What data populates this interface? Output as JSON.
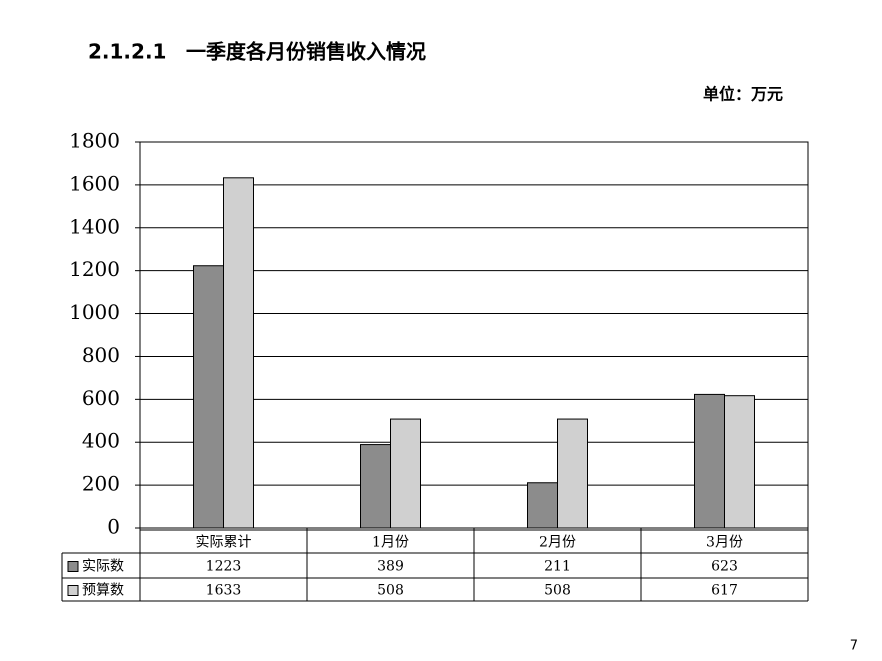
{
  "section_number": "2.1.2.1",
  "title": "一季度各月份销售收入情况",
  "unit": "单位：万元",
  "page_number": "7",
  "chart_data": {
    "type": "bar",
    "categories": [
      "实际累计",
      "1月份",
      "2月份",
      "3月份"
    ],
    "series": [
      {
        "name": "实际数",
        "color": "#8c8c8c",
        "values": [
          1223,
          389,
          211,
          623
        ]
      },
      {
        "name": "预算数",
        "color": "#d0d0d0",
        "values": [
          1633,
          508,
          508,
          617
        ]
      }
    ],
    "ylim": [
      0,
      1800
    ],
    "yticks": [
      0,
      200,
      400,
      600,
      800,
      1000,
      1200,
      1400,
      1600,
      1800
    ],
    "grid": true
  }
}
